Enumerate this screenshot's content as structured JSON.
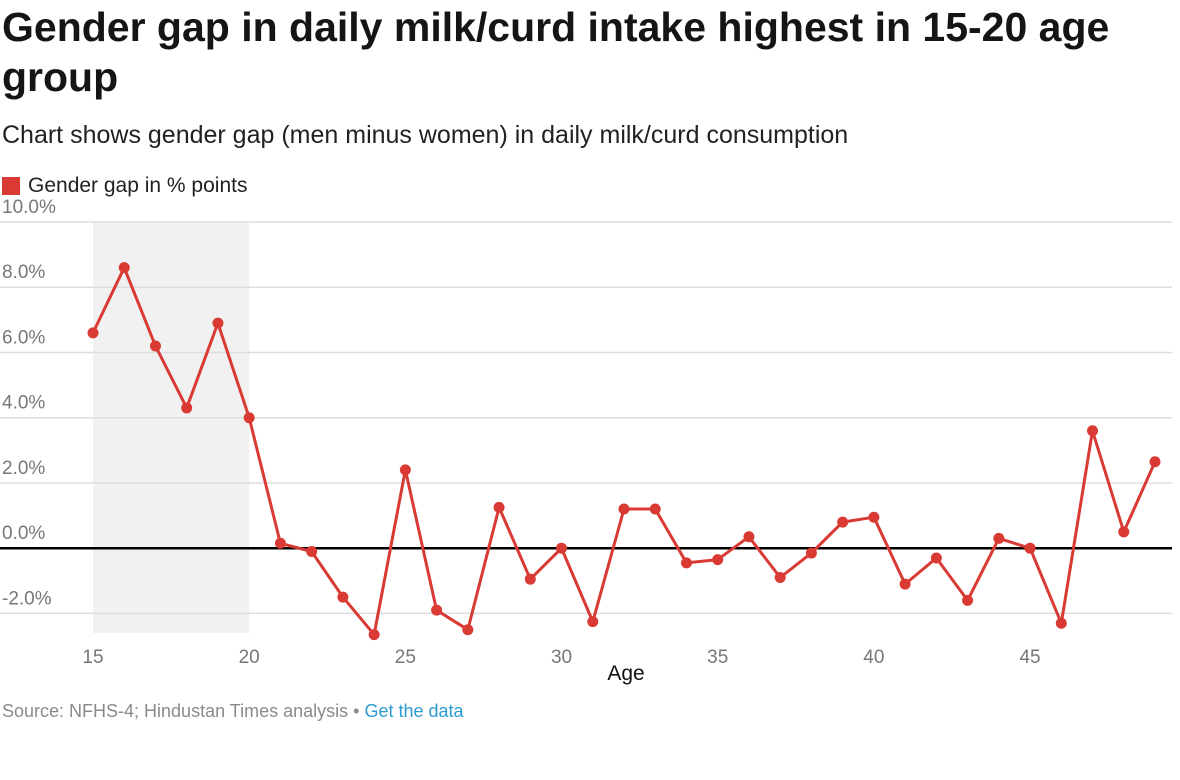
{
  "header": {
    "title": "Gender gap in daily milk/curd intake highest in 15-20 age group",
    "subtitle": "Chart shows gender gap (men minus women) in daily milk/curd consumption"
  },
  "footer": {
    "source_text": "Source: NFHS-4; Hindustan Times analysis",
    "separator": "•",
    "data_link": "Get the data"
  },
  "colors": {
    "series": "#d93a33",
    "highlight_band": "#f1f1f1",
    "gridline": "#dddddd",
    "zero_line": "#000000"
  },
  "chart_data": {
    "type": "line",
    "title": "Gender gap in daily milk/curd intake highest in 15-20 age group",
    "subtitle": "Chart shows gender gap (men minus women) in daily milk/curd consumption",
    "xlabel": "Age",
    "ylabel": "",
    "xlim": [
      15,
      49
    ],
    "ylim": [
      -2.6,
      10
    ],
    "x_ticks": [
      15,
      20,
      25,
      30,
      35,
      40,
      45
    ],
    "x_tick_labels": [
      "15",
      "20",
      "25",
      "30",
      "35",
      "40",
      "45"
    ],
    "y_ticks": [
      -2,
      0,
      2,
      4,
      6,
      8,
      10
    ],
    "y_tick_labels": [
      "-2.0%",
      "0.0%",
      "2.0%",
      "4.0%",
      "6.0%",
      "8.0%",
      "10.0%"
    ],
    "grid": true,
    "legend_position": "top-left",
    "highlight_range": [
      15,
      20
    ],
    "series": [
      {
        "name": "Gender gap in % points",
        "color": "#d93a33",
        "x": [
          15,
          16,
          17,
          18,
          19,
          20,
          21,
          22,
          23,
          24,
          25,
          26,
          27,
          28,
          29,
          30,
          31,
          32,
          33,
          34,
          35,
          36,
          37,
          38,
          39,
          40,
          41,
          42,
          43,
          44,
          45,
          46,
          47,
          48,
          49
        ],
        "values": [
          6.6,
          8.6,
          6.2,
          4.3,
          6.9,
          4.0,
          0.15,
          -0.1,
          -1.5,
          -2.65,
          2.4,
          -1.9,
          -2.5,
          1.25,
          -0.95,
          0.0,
          -2.25,
          1.2,
          1.2,
          -0.45,
          -0.35,
          0.35,
          -0.9,
          -0.15,
          0.8,
          0.95,
          -1.1,
          -0.3,
          -1.6,
          0.3,
          0.0,
          -2.3,
          3.6,
          0.5,
          2.65
        ]
      }
    ]
  }
}
